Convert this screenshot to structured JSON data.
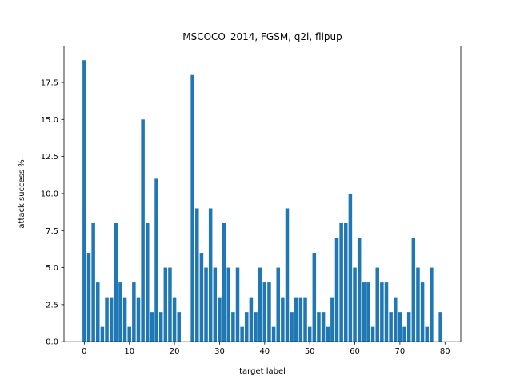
{
  "chart_data": {
    "type": "bar",
    "title": "MSCOCO_2014, FGSM, q2l, flipup",
    "xlabel": "target label",
    "ylabel": "attack success %",
    "x": [
      0,
      1,
      2,
      3,
      4,
      5,
      6,
      7,
      8,
      9,
      10,
      11,
      12,
      13,
      14,
      15,
      16,
      17,
      18,
      19,
      20,
      21,
      22,
      23,
      24,
      25,
      26,
      27,
      28,
      29,
      30,
      31,
      32,
      33,
      34,
      35,
      36,
      37,
      38,
      39,
      40,
      41,
      42,
      43,
      44,
      45,
      46,
      47,
      48,
      49,
      50,
      51,
      52,
      53,
      54,
      55,
      56,
      57,
      58,
      59,
      60,
      61,
      62,
      63,
      64,
      65,
      66,
      67,
      68,
      69,
      70,
      71,
      72,
      73,
      74,
      75,
      76,
      77,
      78,
      79
    ],
    "values": [
      19,
      6,
      8,
      4,
      1,
      3,
      3,
      8,
      4,
      3,
      1,
      4,
      3,
      15,
      8,
      2,
      11,
      2,
      5,
      5,
      3,
      2,
      0,
      0,
      18,
      9,
      6,
      5,
      9,
      5,
      3,
      8,
      5,
      2,
      5,
      1,
      2,
      3,
      2,
      5,
      4,
      4,
      1,
      5,
      3,
      9,
      2,
      3,
      3,
      3,
      1,
      6,
      2,
      2,
      1,
      3,
      7,
      8,
      8,
      10,
      5,
      7,
      4,
      4,
      1,
      5,
      4,
      4,
      2,
      3,
      2,
      1,
      2,
      7,
      5,
      4,
      1,
      5,
      0,
      2
    ],
    "xlim": [
      -4.5,
      83.5
    ],
    "ylim": [
      0,
      19.95
    ],
    "xticks": [
      0,
      10,
      20,
      30,
      40,
      50,
      60,
      70,
      80
    ],
    "xtick_labels": [
      "0",
      "10",
      "20",
      "30",
      "40",
      "50",
      "60",
      "70",
      "80"
    ],
    "yticks": [
      0,
      2.5,
      5,
      7.5,
      10,
      12.5,
      15,
      17.5
    ],
    "ytick_labels": [
      "0.0",
      "2.5",
      "5.0",
      "7.5",
      "10.0",
      "12.5",
      "15.0",
      "17.5"
    ],
    "bar_color": "#1f77b4",
    "grid": false
  }
}
